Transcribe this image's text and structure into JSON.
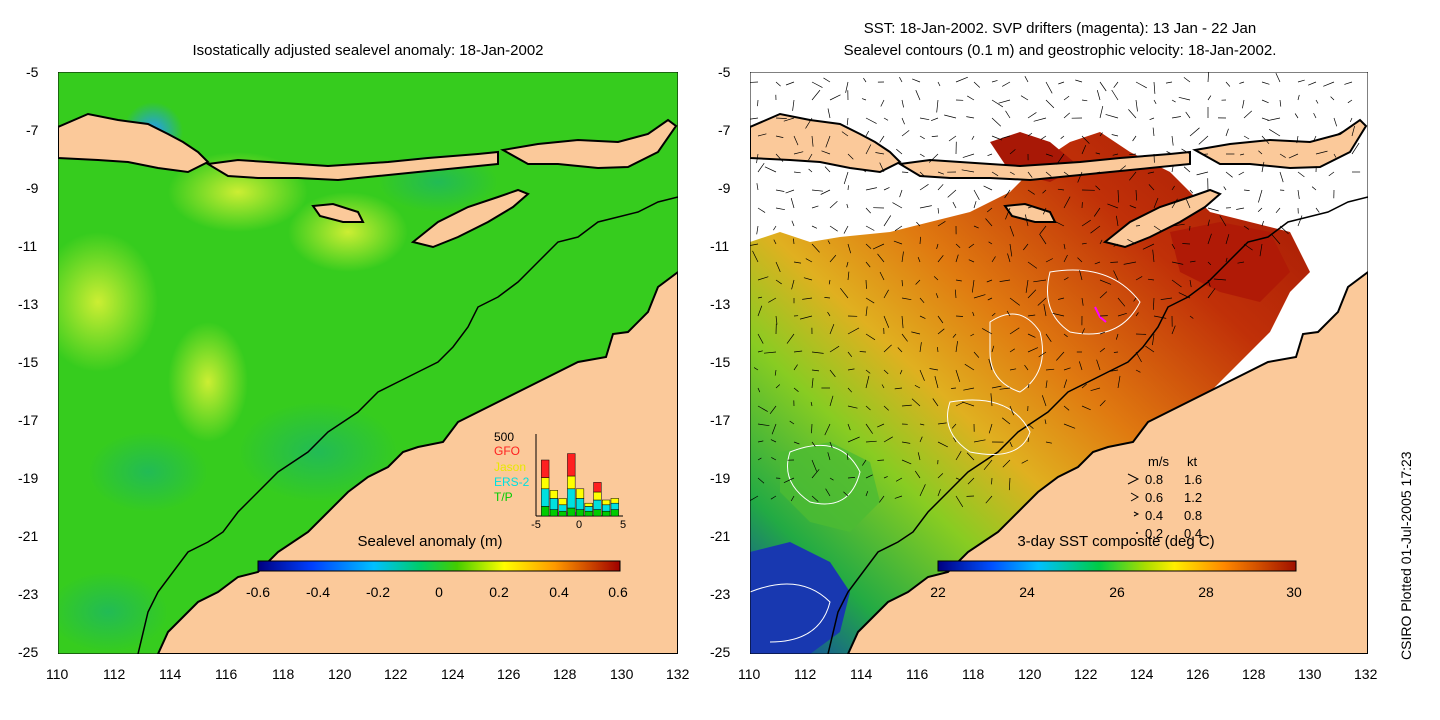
{
  "left_panel": {
    "title": "Isostatically adjusted sealevel anomaly: 18-Jan-2002",
    "y_ticks": [
      "-5",
      "-7",
      "-9",
      "-11",
      "-13",
      "-15",
      "-17",
      "-19",
      "-21",
      "-23",
      "-25"
    ],
    "x_ticks": [
      "110",
      "112",
      "114",
      "116",
      "118",
      "120",
      "122",
      "124",
      "126",
      "128",
      "130",
      "132"
    ],
    "colorbar": {
      "label": "Sealevel anomaly (m)",
      "ticks": [
        "-0.6",
        "-0.4",
        "-0.2",
        "0",
        "0.2",
        "0.4",
        "0.6"
      ]
    },
    "histogram": {
      "top_label": "500",
      "legend": [
        {
          "name": "GFO",
          "color": "#ff2020"
        },
        {
          "name": "Jason",
          "color": "#ffff00"
        },
        {
          "name": "ERS-2",
          "color": "#00e0e0"
        },
        {
          "name": "T/P",
          "color": "#00cc00"
        }
      ],
      "x_ticks": [
        "-5",
        "0",
        "5"
      ],
      "bars": [
        {
          "day": -4,
          "tp": 60,
          "ers": 110,
          "jason": 70,
          "gfo": 110
        },
        {
          "day": -3,
          "tp": 40,
          "ers": 70,
          "jason": 50,
          "gfo": 0
        },
        {
          "day": -2,
          "tp": 30,
          "ers": 40,
          "jason": 40,
          "gfo": 0
        },
        {
          "day": -1,
          "tp": 50,
          "ers": 120,
          "jason": 80,
          "gfo": 140
        },
        {
          "day": 0,
          "tp": 40,
          "ers": 70,
          "jason": 60,
          "gfo": 0
        },
        {
          "day": 1,
          "tp": 30,
          "ers": 30,
          "jason": 20,
          "gfo": 0
        },
        {
          "day": 2,
          "tp": 40,
          "ers": 60,
          "jason": 50,
          "gfo": 60
        },
        {
          "day": 3,
          "tp": 30,
          "ers": 40,
          "jason": 30,
          "gfo": 0
        },
        {
          "day": 4,
          "tp": 40,
          "ers": 40,
          "jason": 30,
          "gfo": 0
        }
      ]
    }
  },
  "right_panel": {
    "title_line1": "SST: 18-Jan-2002. SVP drifters (magenta): 13 Jan - 22 Jan",
    "title_line2": "Sealevel contours (0.1 m) and geostrophic velocity: 18-Jan-2002.",
    "y_ticks": [
      "-5",
      "-7",
      "-9",
      "-11",
      "-13",
      "-15",
      "-17",
      "-19",
      "-21",
      "-23",
      "-25"
    ],
    "x_ticks": [
      "110",
      "112",
      "114",
      "116",
      "118",
      "120",
      "122",
      "124",
      "126",
      "128",
      "130",
      "132"
    ],
    "colorbar": {
      "label": "3-day SST composite (deg C)",
      "ticks": [
        "22",
        "24",
        "26",
        "28",
        "30"
      ]
    },
    "velocity_legend": {
      "header_ms": "m/s",
      "header_kt": "kt",
      "rows": [
        {
          "ms": "0.8",
          "kt": "1.6"
        },
        {
          "ms": "0.6",
          "kt": "1.2"
        },
        {
          "ms": "0.4",
          "kt": "0.8"
        },
        {
          "ms": "0.2",
          "kt": "0.4"
        }
      ]
    }
  },
  "credit": "CSIRO Plotted 01-Jul-2005 17:23",
  "colors": {
    "land": "#fbc99a",
    "sla_green": "#33cc22",
    "sla_light": "#88dd33",
    "sst_orange": "#e07a10",
    "sst_red": "#b51a05"
  }
}
